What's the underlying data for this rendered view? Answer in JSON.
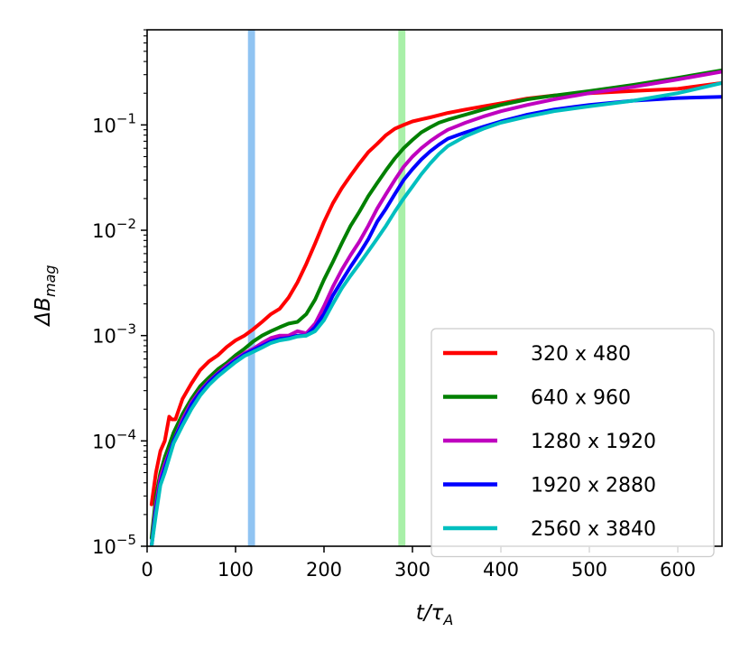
{
  "chart_data": {
    "type": "line",
    "xlabel": "t/τA",
    "ylabel": "ΔBmag",
    "xlabel_parts": {
      "main": "t/τ",
      "sub": "A"
    },
    "ylabel_parts": {
      "main": "ΔB",
      "sub": "mag"
    },
    "xlim": [
      0,
      650
    ],
    "ylim": [
      1e-05,
      0.8
    ],
    "yscale": "log",
    "grid": false,
    "legend_position": "lower-right",
    "x_ticks": [
      0,
      100,
      200,
      300,
      400,
      500,
      600
    ],
    "x_tick_labels": [
      "0",
      "100",
      "200",
      "300",
      "400",
      "500",
      "600"
    ],
    "y_ticks": [
      {
        "value": 1e-05,
        "base": "10",
        "exp": "−5"
      },
      {
        "value": 0.0001,
        "base": "10",
        "exp": "−4"
      },
      {
        "value": 0.001,
        "base": "10",
        "exp": "−3"
      },
      {
        "value": 0.01,
        "base": "10",
        "exp": "−2"
      },
      {
        "value": 0.1,
        "base": "10",
        "exp": "−1"
      }
    ],
    "vertical_bands": [
      {
        "x": 118,
        "width": 8,
        "color": "#90c4f2"
      },
      {
        "x": 288,
        "width": 8,
        "color": "#a8f0a8"
      }
    ],
    "series": [
      {
        "name": "320 x 480",
        "color": "#ff0000",
        "x": [
          5,
          10,
          15,
          20,
          25,
          28,
          32,
          40,
          50,
          60,
          70,
          80,
          90,
          100,
          110,
          120,
          130,
          140,
          150,
          160,
          170,
          180,
          190,
          200,
          210,
          220,
          230,
          240,
          250,
          260,
          270,
          280,
          290,
          300,
          310,
          320,
          340,
          360,
          380,
          400,
          430,
          460,
          500,
          550,
          600,
          650
        ],
        "y": [
          2.5e-05,
          5e-05,
          8e-05,
          0.0001,
          0.00017,
          0.00016,
          0.00016,
          0.00025,
          0.00035,
          0.00047,
          0.00057,
          0.00065,
          0.00078,
          0.0009,
          0.001,
          0.00115,
          0.00135,
          0.0016,
          0.0018,
          0.0023,
          0.0032,
          0.0048,
          0.0075,
          0.012,
          0.018,
          0.025,
          0.033,
          0.043,
          0.055,
          0.066,
          0.08,
          0.092,
          0.1,
          0.108,
          0.113,
          0.118,
          0.13,
          0.14,
          0.15,
          0.16,
          0.178,
          0.19,
          0.2,
          0.21,
          0.22,
          0.25
        ]
      },
      {
        "name": "640 x 960",
        "color": "#008000",
        "x": [
          5,
          10,
          15,
          20,
          30,
          40,
          50,
          60,
          70,
          80,
          90,
          100,
          110,
          120,
          130,
          140,
          150,
          160,
          170,
          180,
          190,
          200,
          210,
          220,
          230,
          240,
          250,
          260,
          270,
          280,
          290,
          300,
          310,
          320,
          330,
          340,
          360,
          380,
          400,
          430,
          460,
          500,
          550,
          600,
          650
        ],
        "y": [
          1.2e-05,
          3e-05,
          5e-05,
          7e-05,
          0.00012,
          0.00018,
          0.00025,
          0.00033,
          0.0004,
          0.00048,
          0.00055,
          0.00065,
          0.00075,
          0.00088,
          0.001,
          0.0011,
          0.0012,
          0.0013,
          0.00135,
          0.0016,
          0.0022,
          0.0034,
          0.005,
          0.0075,
          0.011,
          0.015,
          0.021,
          0.028,
          0.037,
          0.048,
          0.06,
          0.072,
          0.085,
          0.095,
          0.105,
          0.112,
          0.125,
          0.14,
          0.155,
          0.175,
          0.19,
          0.21,
          0.24,
          0.28,
          0.33
        ]
      },
      {
        "name": "1280 x 1920",
        "color": "#bf00bf",
        "x": [
          5,
          10,
          15,
          20,
          30,
          40,
          50,
          60,
          70,
          80,
          90,
          100,
          110,
          120,
          130,
          140,
          150,
          160,
          170,
          180,
          190,
          200,
          210,
          220,
          230,
          240,
          250,
          260,
          270,
          280,
          290,
          300,
          310,
          320,
          330,
          340,
          360,
          380,
          400,
          430,
          460,
          500,
          550,
          600,
          650
        ],
        "y": [
          1e-05,
          2.5e-05,
          4.5e-05,
          6e-05,
          0.0001,
          0.00016,
          0.00023,
          0.0003,
          0.00037,
          0.00044,
          0.00052,
          0.0006,
          0.00068,
          0.00075,
          0.00085,
          0.00095,
          0.001,
          0.001,
          0.0011,
          0.00105,
          0.0013,
          0.0019,
          0.0029,
          0.0042,
          0.0058,
          0.0078,
          0.011,
          0.016,
          0.022,
          0.03,
          0.04,
          0.05,
          0.06,
          0.07,
          0.08,
          0.09,
          0.105,
          0.12,
          0.135,
          0.155,
          0.175,
          0.2,
          0.23,
          0.27,
          0.32
        ]
      },
      {
        "name": "1920 x 2880",
        "color": "#0000ff",
        "x": [
          5,
          10,
          15,
          20,
          30,
          40,
          50,
          60,
          70,
          80,
          90,
          100,
          110,
          120,
          130,
          140,
          150,
          160,
          170,
          180,
          190,
          200,
          210,
          220,
          230,
          240,
          250,
          260,
          270,
          280,
          290,
          300,
          310,
          320,
          330,
          340,
          360,
          380,
          400,
          430,
          460,
          500,
          550,
          600,
          650
        ],
        "y": [
          1e-05,
          2.2e-05,
          4e-05,
          5.5e-05,
          0.0001,
          0.00015,
          0.00022,
          0.00029,
          0.00036,
          0.00043,
          0.0005,
          0.00058,
          0.00066,
          0.00073,
          0.0008,
          0.00088,
          0.00093,
          0.00095,
          0.001,
          0.001,
          0.0012,
          0.0016,
          0.0024,
          0.0033,
          0.0045,
          0.006,
          0.0082,
          0.012,
          0.016,
          0.022,
          0.03,
          0.038,
          0.047,
          0.056,
          0.065,
          0.074,
          0.085,
          0.096,
          0.108,
          0.125,
          0.14,
          0.155,
          0.17,
          0.18,
          0.185
        ]
      },
      {
        "name": "2560 x 3840",
        "color": "#00bfbf",
        "x": [
          5,
          10,
          15,
          20,
          30,
          40,
          50,
          60,
          70,
          80,
          90,
          100,
          110,
          120,
          130,
          140,
          150,
          160,
          170,
          180,
          190,
          200,
          210,
          220,
          230,
          240,
          250,
          260,
          270,
          280,
          290,
          300,
          310,
          320,
          330,
          340,
          360,
          380,
          400,
          430,
          460,
          500,
          550,
          600,
          650
        ],
        "y": [
          1e-05,
          2e-05,
          3.8e-05,
          5e-05,
          9.5e-05,
          0.00014,
          0.0002,
          0.00027,
          0.00034,
          0.00041,
          0.00048,
          0.00056,
          0.00064,
          0.0007,
          0.00077,
          0.00085,
          0.0009,
          0.00093,
          0.00098,
          0.001,
          0.0011,
          0.0014,
          0.002,
          0.0028,
          0.0037,
          0.0048,
          0.0063,
          0.0083,
          0.011,
          0.015,
          0.02,
          0.026,
          0.034,
          0.043,
          0.053,
          0.063,
          0.078,
          0.092,
          0.105,
          0.12,
          0.135,
          0.15,
          0.17,
          0.2,
          0.25
        ]
      }
    ]
  }
}
